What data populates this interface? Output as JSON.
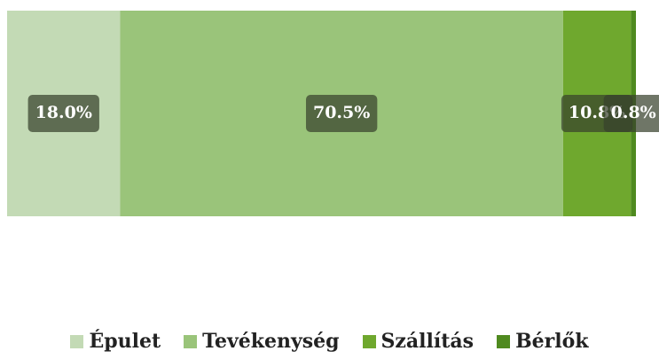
{
  "chart_data": {
    "type": "bar",
    "orientation": "horizontal",
    "stacked": true,
    "series": [
      {
        "name": "Épulet",
        "color": "#c3dab5",
        "values": [
          18.0
        ],
        "value_labels": [
          "18.0%"
        ]
      },
      {
        "name": "Tevékenység",
        "color": "#9ac47a",
        "values": [
          70.5
        ],
        "value_labels": [
          "70.5%"
        ]
      },
      {
        "name": "Szállítás",
        "color": "#6fa82e",
        "values": [
          10.8
        ],
        "value_labels": [
          "10.8%"
        ]
      },
      {
        "name": "Bérlők",
        "color": "#4f8a1f",
        "values": [
          0.8
        ],
        "value_labels": [
          "0.8%"
        ]
      }
    ],
    "legend": "bottom"
  }
}
